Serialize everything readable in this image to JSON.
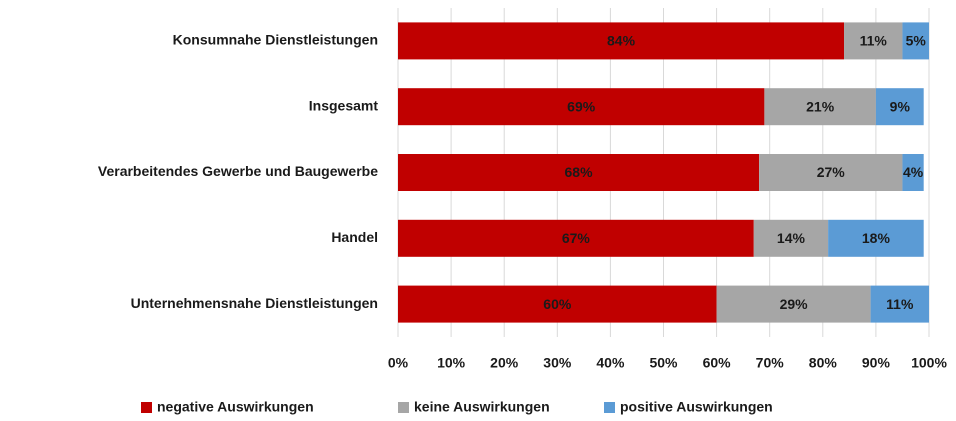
{
  "chart_data": {
    "type": "stacked_bar_horizontal",
    "categories": [
      "Konsumnahe Dienstleistungen",
      "Insgesamt",
      "Verarbeitendes Gewerbe und Baugewerbe",
      "Handel",
      "Unternehmensnahe Dienstleistungen"
    ],
    "series": [
      {
        "name": "negative Auswirkungen",
        "color": "#c00000",
        "values": [
          84,
          69,
          68,
          67,
          60
        ],
        "value_labels": [
          "84%",
          "69%",
          "68%",
          "67%",
          "60%"
        ]
      },
      {
        "name": "keine Auswirkungen",
        "color": "#a6a6a6",
        "values": [
          11,
          21,
          27,
          14,
          29
        ],
        "value_labels": [
          "11%",
          "21%",
          "27%",
          "14%",
          "29%"
        ]
      },
      {
        "name": "positive Auswirkungen",
        "color": "#5b9bd5",
        "values": [
          5,
          9,
          4,
          18,
          11
        ],
        "value_labels": [
          "5%",
          "9%",
          "4%",
          "18%",
          "11%"
        ]
      }
    ],
    "xlim": [
      0,
      100
    ],
    "xticks": [
      {
        "value": 0,
        "label": "0%"
      },
      {
        "value": 10,
        "label": "10%"
      },
      {
        "value": 20,
        "label": "20%"
      },
      {
        "value": 30,
        "label": "30%"
      },
      {
        "value": 40,
        "label": "40%"
      },
      {
        "value": 50,
        "label": "50%"
      },
      {
        "value": 60,
        "label": "60%"
      },
      {
        "value": 70,
        "label": "70%"
      },
      {
        "value": 80,
        "label": "80%"
      },
      {
        "value": 90,
        "label": "90%"
      },
      {
        "value": 100,
        "label": "100%"
      }
    ],
    "grid": true,
    "legend": "bottom"
  }
}
